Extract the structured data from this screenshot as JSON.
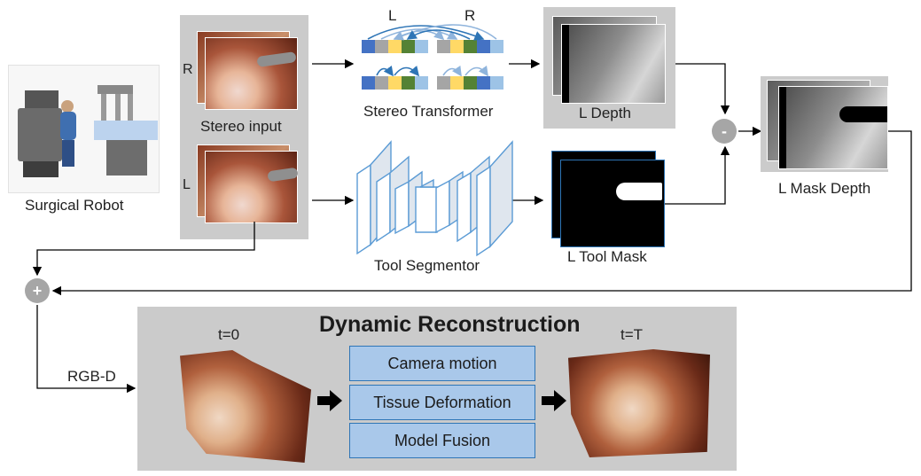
{
  "labels": {
    "surgical_robot": "Surgical Robot",
    "stereo_input": "Stereo input",
    "r_tag": "R",
    "l_tag": "L",
    "stereo_transformer": "Stereo Transformer",
    "transformer_L": "L",
    "transformer_R": "R",
    "l_depth": "L Depth",
    "tool_segmentor": "Tool Segmentor",
    "l_tool_mask": "L Tool Mask",
    "l_mask_depth": "L Mask Depth",
    "rgbd": "RGB-D",
    "minus": "-",
    "plus": "+"
  },
  "dynamic_reconstruction": {
    "title": "Dynamic Reconstruction",
    "t0": "t=0",
    "tT": "t=T",
    "stages": [
      "Camera motion",
      "Tissue Deformation",
      "Model Fusion"
    ]
  },
  "colors": {
    "panel_gray": "#cbcbcb",
    "stage_blue": "#a9c8ea",
    "stage_border": "#2e75b6",
    "token_blue": "#4472c4",
    "token_gray": "#a5a5a5",
    "token_yellow": "#ffd966",
    "token_green": "#548235",
    "token_lightblue": "#9dc3e6"
  }
}
